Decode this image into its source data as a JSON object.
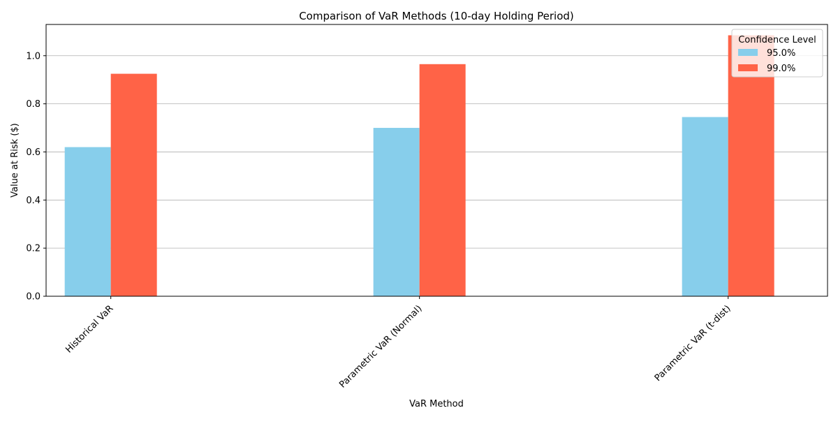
{
  "chart_data": {
    "type": "bar",
    "title": "Comparison of VaR Methods (10-day Holding Period)",
    "xlabel": "VaR Method",
    "ylabel": "Value at Risk ($)",
    "categories": [
      "Historical VaR",
      "Parametric VaR (Normal)",
      "Parametric VaR (t-dist)"
    ],
    "series": [
      {
        "name": "95.0%",
        "color": "#87CEEB",
        "values": [
          0.62,
          0.7,
          0.745
        ]
      },
      {
        "name": "99.0%",
        "color": "#FF6347",
        "values": [
          0.925,
          0.965,
          1.085
        ]
      }
    ],
    "ylim": [
      0,
      1.13
    ],
    "yticks": [
      0.0,
      0.2,
      0.4,
      0.6,
      0.8,
      1.0
    ],
    "ytick_labels": [
      "0.0",
      "0.2",
      "0.4",
      "0.6",
      "0.8",
      "1.0"
    ],
    "grid": "horizontal",
    "legend": {
      "title": "Confidence Level",
      "position": "top-right"
    }
  }
}
